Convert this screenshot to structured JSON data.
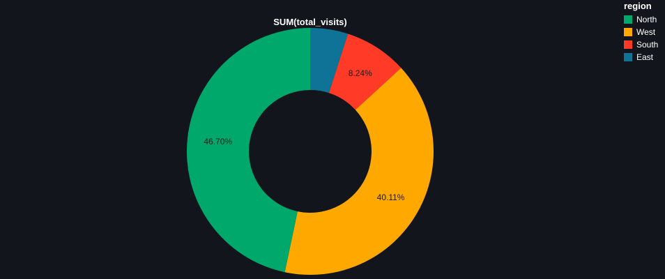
{
  "chart_data": {
    "type": "pie",
    "hole": true,
    "title": "SUM(total_visits)",
    "legend_title": "region",
    "legend_position": "top-right",
    "slices": [
      {
        "label": "North",
        "percent": 46.7,
        "display": "46.70%",
        "color": "#00a86b"
      },
      {
        "label": "West",
        "percent": 40.11,
        "display": "40.11%",
        "color": "#ffa800"
      },
      {
        "label": "South",
        "percent": 8.24,
        "display": "8.24%",
        "color": "#ff3b28"
      },
      {
        "label": "East",
        "percent": 4.95,
        "display": "",
        "color": "#0e7396"
      }
    ],
    "slice_order": [
      "East",
      "South",
      "West",
      "North"
    ]
  },
  "colors": {
    "background": "#12161c",
    "text": "#ffffff"
  }
}
